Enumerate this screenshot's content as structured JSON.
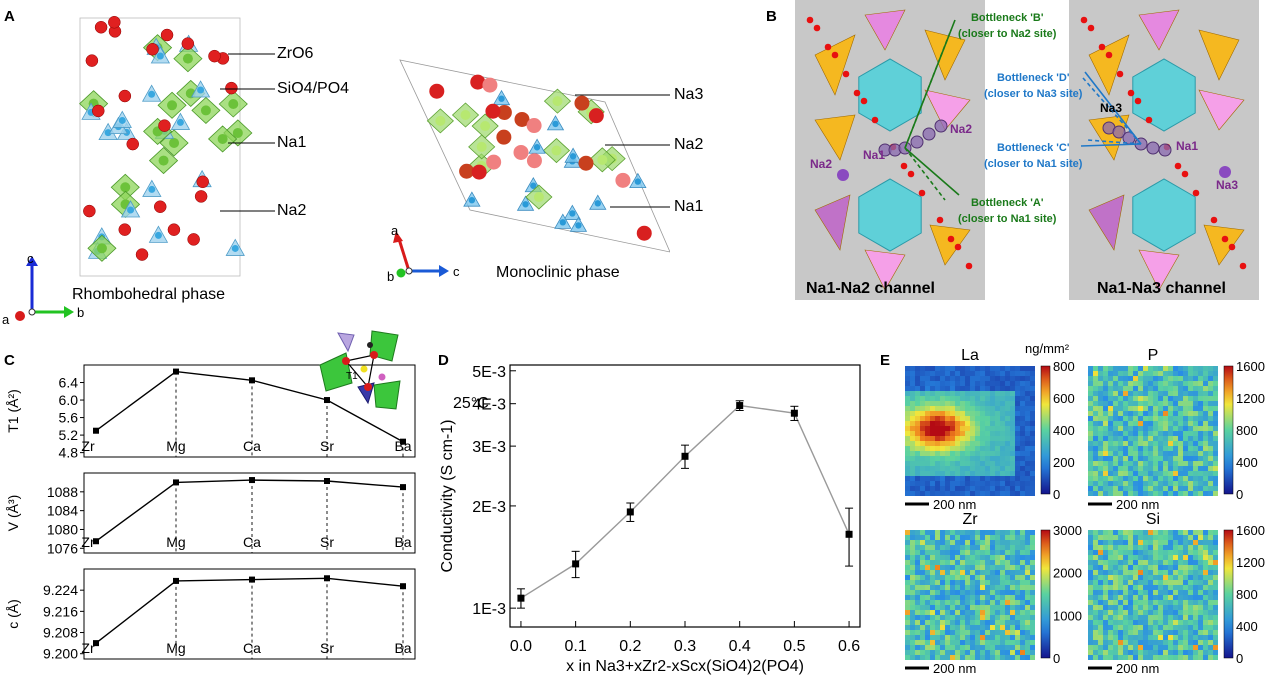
{
  "panel_letters": [
    "A",
    "B",
    "C",
    "D",
    "E"
  ],
  "panel_a": {
    "rhombo_caption": "Rhombohedral phase",
    "mono_caption": "Monoclinic phase",
    "labels": {
      "zro6": "ZrO6",
      "sio4": "SiO4/PO4",
      "na1": "Na1",
      "na2": "Na2",
      "na3": "Na3"
    },
    "axes": {
      "a": "a",
      "b": "b",
      "c": "c"
    }
  },
  "panel_b": {
    "left_caption": "Na1-Na2 channel",
    "right_caption": "Na1-Na3 channel",
    "bottleneck_b": [
      "Bottleneck 'B'",
      "(closer to Na2 site)"
    ],
    "bottleneck_a": [
      "Bottleneck 'A'",
      "(closer to Na1 site)"
    ],
    "bottleneck_d": [
      "Bottleneck 'D'",
      "(closer to Na3 site)"
    ],
    "bottleneck_c": [
      "Bottleneck 'C'",
      "(closer to Na1 site)"
    ],
    "site_labels": [
      "Na1",
      "Na2",
      "Na1",
      "Na2",
      "Na3",
      "Na1",
      "Na3"
    ],
    "colors": {
      "green": "#1a7a1a",
      "blue": "#1f78c8",
      "purple": "#7b2a8a"
    }
  },
  "chart_data": [
    {
      "type": "line",
      "panel": "C-top",
      "categories": [
        "Zr",
        "Mg",
        "Ca",
        "Sr",
        "Ba"
      ],
      "values": [
        5.3,
        6.65,
        6.45,
        6.0,
        5.05
      ],
      "ylabel": "T1 (Å²)",
      "yticks": [
        "4.8",
        "5.2",
        "5.6",
        "6.0",
        "6.4"
      ],
      "ylim": [
        4.7,
        6.8
      ]
    },
    {
      "type": "line",
      "panel": "C-mid",
      "categories": [
        "Zr",
        "Mg",
        "Ca",
        "Sr",
        "Ba"
      ],
      "values": [
        1077.5,
        1090.0,
        1090.5,
        1090.3,
        1089.0
      ],
      "ylabel": "V (Å³)",
      "yticks": [
        "1076",
        "1080",
        "1084",
        "1088"
      ],
      "ylim": [
        1075,
        1092
      ]
    },
    {
      "type": "line",
      "panel": "C-bot",
      "categories": [
        "Zr",
        "Mg",
        "Ca",
        "Sr",
        "Ba"
      ],
      "values": [
        9.204,
        9.2275,
        9.228,
        9.2285,
        9.2255
      ],
      "ylabel": "c (Å)",
      "yticks": [
        "9.200",
        "9.208",
        "9.216",
        "9.224"
      ],
      "ylim": [
        9.198,
        9.232
      ]
    },
    {
      "type": "line",
      "panel": "D",
      "annotation": "25°C",
      "xlabel": "x in Na3+xZr2-xScx(SiO4)2(PO4)",
      "ylabel": "Conductivity (S cm-1)",
      "x": [
        0.0,
        0.1,
        0.2,
        0.3,
        0.4,
        0.5,
        0.6
      ],
      "values": [
        0.00107,
        0.00135,
        0.00192,
        0.0028,
        0.00395,
        0.00375,
        0.00165
      ],
      "errors": [
        7e-05,
        0.00012,
        0.00012,
        0.00022,
        0.00013,
        0.00018,
        0.00032
      ],
      "xticks": [
        "0.0",
        "0.1",
        "0.2",
        "0.3",
        "0.4",
        "0.5",
        "0.6"
      ],
      "yticks": [
        "1E-3",
        "2E-3",
        "3E-3",
        "4E-3",
        "5E-3"
      ],
      "xlim": [
        -0.02,
        0.62
      ],
      "ylim": [
        0.00088,
        0.0052
      ],
      "scale": "log",
      "grid": false
    }
  ],
  "panel_e": {
    "unit": "ng/mm²",
    "scale_bar": "200 nm",
    "maps": [
      {
        "title": "La",
        "ticks": [
          "0",
          "200",
          "400",
          "600",
          "800"
        ]
      },
      {
        "title": "P",
        "ticks": [
          "0",
          "400",
          "800",
          "1200",
          "1600"
        ]
      },
      {
        "title": "Zr",
        "ticks": [
          "0",
          "1000",
          "2000",
          "3000"
        ]
      },
      {
        "title": "Si",
        "ticks": [
          "0",
          "400",
          "800",
          "1200",
          "1600"
        ]
      }
    ]
  }
}
